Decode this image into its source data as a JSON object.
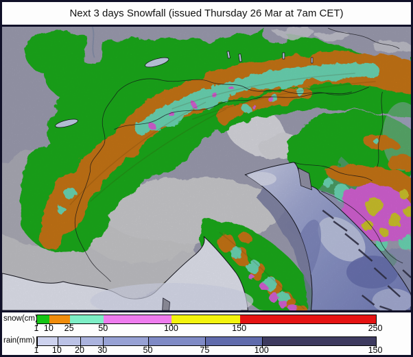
{
  "title": "Next 3 days Snowfall (issued Thursday 26 Mar at 7am CET)",
  "legends": {
    "snow": {
      "label": "snow(cm)",
      "unit": "cm",
      "min": 1,
      "max": 250,
      "ticks": [
        1,
        10,
        25,
        50,
        100,
        150,
        250
      ],
      "segments": [
        {
          "from": 1,
          "to": 10,
          "color": "#15c515"
        },
        {
          "from": 10,
          "to": 25,
          "color": "#f08c0c"
        },
        {
          "from": 25,
          "to": 50,
          "color": "#7deec6"
        },
        {
          "from": 50,
          "to": 100,
          "color": "#ee7bee"
        },
        {
          "from": 100,
          "to": 150,
          "color": "#f3f30e"
        },
        {
          "from": 150,
          "to": 250,
          "color": "#e51212"
        }
      ]
    },
    "rain": {
      "label": "rain(mm)",
      "unit": "mm",
      "min": 1,
      "max": 150,
      "ticks": [
        1,
        10,
        20,
        30,
        50,
        75,
        100,
        150
      ],
      "segments": [
        {
          "from": 1,
          "to": 10,
          "color": "#cdd2ee"
        },
        {
          "from": 10,
          "to": 20,
          "color": "#bbc2e6"
        },
        {
          "from": 20,
          "to": 30,
          "color": "#abb3de"
        },
        {
          "from": 30,
          "to": 50,
          "color": "#97a1d4"
        },
        {
          "from": 50,
          "to": 75,
          "color": "#7f8ac5"
        },
        {
          "from": 75,
          "to": 100,
          "color": "#606bac"
        },
        {
          "from": 100,
          "to": 150,
          "color": "#3d3a5f"
        }
      ]
    }
  },
  "map": {
    "colors": {
      "frame": "#101028",
      "land": "#a4a4b8",
      "land_light": "#c9c9ce",
      "valley": "#d3d3d6",
      "ridge_white": "#e2e2e8",
      "sea": "#edeffb",
      "snow_green": "#1bb21b",
      "snow_orange": "#cf7a16",
      "snow_teal": "#6fdfbc",
      "snow_magenta": "#dd66dd",
      "snow_yellow": "#d6ca2e",
      "rain_light": "#cfd4ef",
      "rain_mid": "#929cd1",
      "rain_dark": "#6b74b6"
    }
  }
}
